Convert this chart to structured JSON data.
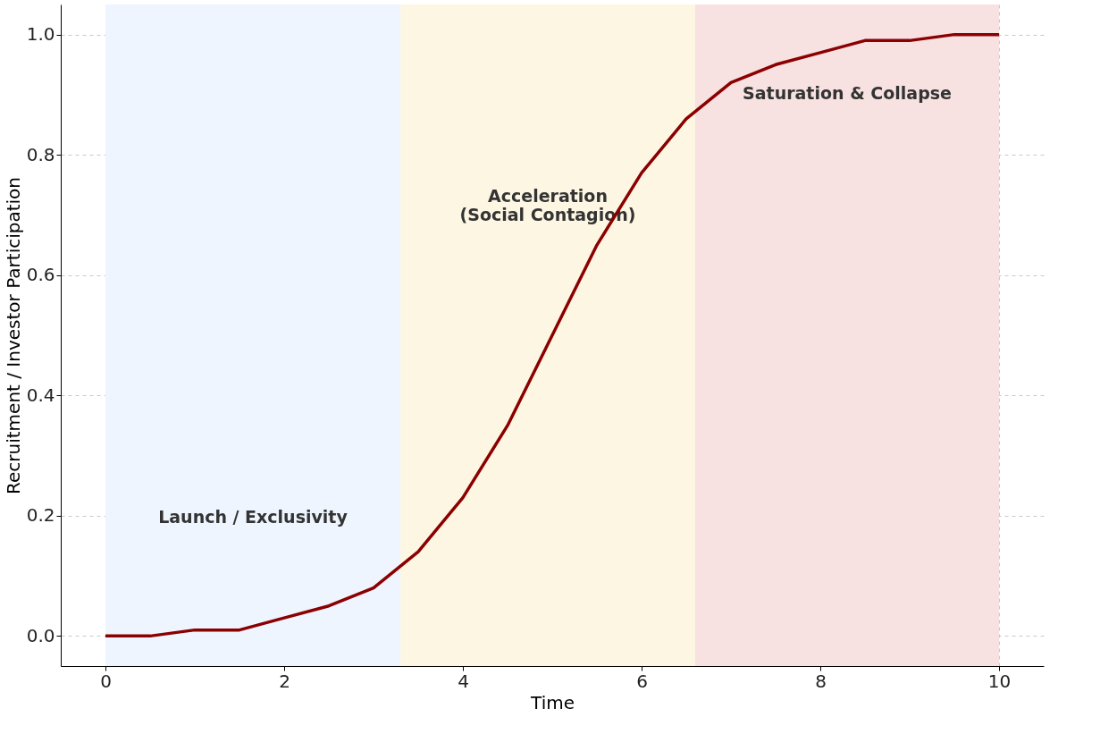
{
  "chart_data": {
    "type": "line",
    "xlabel": "Time",
    "ylabel": "Recruitment / Investor Participation",
    "x": [
      0,
      0.5,
      1,
      1.5,
      2,
      2.5,
      3,
      3.5,
      4,
      4.5,
      5,
      5.5,
      6,
      6.5,
      7,
      7.5,
      8,
      8.5,
      9,
      9.5,
      10
    ],
    "series": [
      {
        "color": "#8b0000",
        "values": [
          0.0,
          0.0,
          0.01,
          0.01,
          0.03,
          0.05,
          0.08,
          0.14,
          0.23,
          0.35,
          0.5,
          0.65,
          0.77,
          0.86,
          0.92,
          0.95,
          0.97,
          0.99,
          0.99,
          1.0,
          1.0
        ]
      }
    ],
    "xlim": [
      -0.5,
      10.5
    ],
    "ylim": [
      -0.05,
      1.05
    ],
    "xticks": [
      0,
      2,
      4,
      6,
      8,
      10
    ],
    "yticks": [
      {
        "value": 0,
        "label": "0.0"
      },
      {
        "value": 0.2,
        "label": "0.2"
      },
      {
        "value": 0.4,
        "label": "0.4"
      },
      {
        "value": 0.6,
        "label": "0.6"
      },
      {
        "value": 0.8,
        "label": "0.8"
      },
      {
        "value": 1.0,
        "label": "1.0"
      }
    ],
    "bands": [
      {
        "axis": "x",
        "from": 0,
        "to": 3.3,
        "color": "#eef5ff",
        "label": "Launch / Exclusivity"
      },
      {
        "axis": "x",
        "from": 3.3,
        "to": 6.6,
        "color": "#fdf6e3",
        "label": "Acceleration\n(Social Contagion)"
      },
      {
        "axis": "x",
        "from": 6.6,
        "to": 10,
        "color": "#f7e1e1",
        "label": "Saturation & Collapse"
      }
    ],
    "grid": true,
    "line_style": "solid",
    "marker": "none"
  }
}
